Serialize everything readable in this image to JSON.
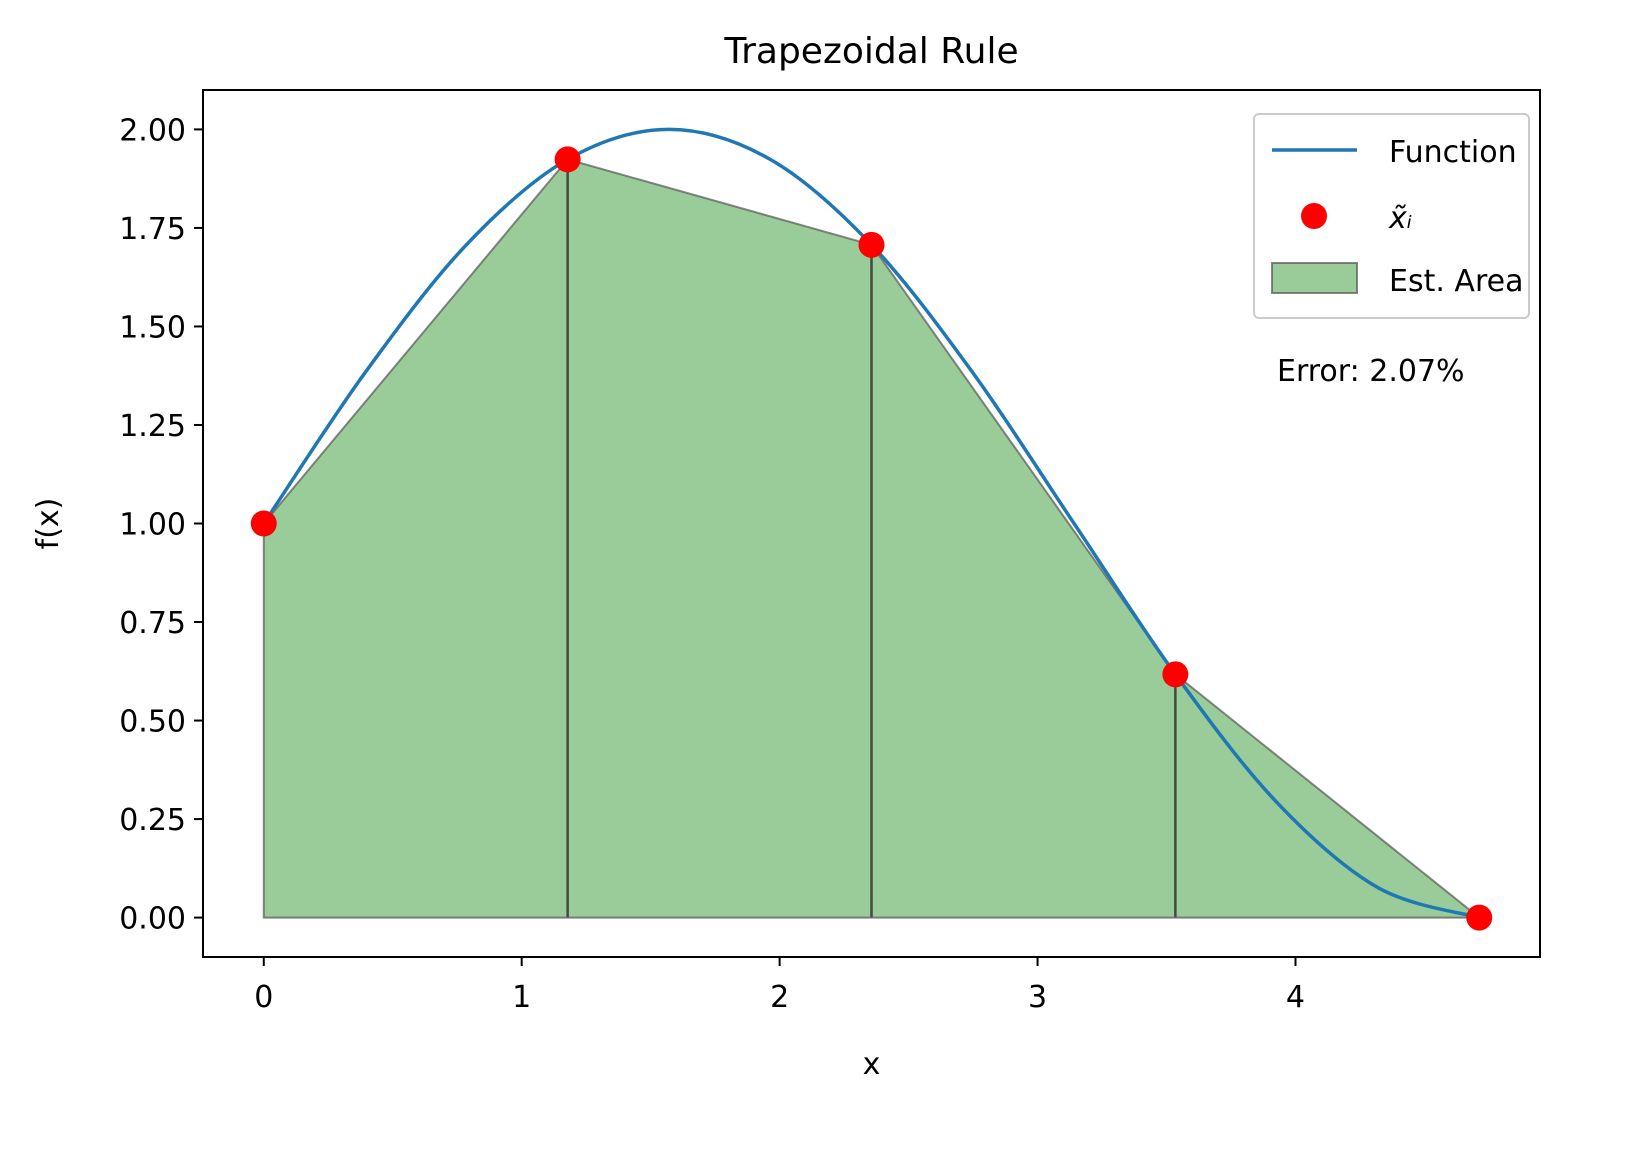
{
  "chart_data": {
    "type": "line",
    "title": "Trapezoidal Rule",
    "xlabel": "x",
    "ylabel": "f(x)",
    "xlim": [
      -0.2356,
      4.948
    ],
    "ylim": [
      -0.1,
      2.1
    ],
    "x_ticks": [
      0,
      1,
      2,
      3,
      4
    ],
    "x_tick_labels": [
      "0",
      "1",
      "2",
      "3",
      "4"
    ],
    "y_ticks": [
      0,
      0.25,
      0.5,
      0.75,
      1.0,
      1.25,
      1.5,
      1.75,
      2.0
    ],
    "y_tick_labels": [
      "0.00",
      "0.25",
      "0.50",
      "0.75",
      "1.00",
      "1.25",
      "1.50",
      "1.75",
      "2.00"
    ],
    "grid": false,
    "legend_position": "top-right",
    "series": [
      {
        "name": "Function",
        "kind": "line",
        "color": "#1f77b4",
        "x": [
          0.0,
          0.3927,
          0.7854,
          1.1781,
          1.5708,
          1.9635,
          2.3562,
          2.7489,
          3.1416,
          3.5343,
          3.927,
          4.3197,
          4.7124
        ],
        "y": [
          1.0,
          1.3827,
          1.7071,
          1.9239,
          2.0,
          1.9239,
          1.7071,
          1.3827,
          1.0,
          0.6173,
          0.2929,
          0.0761,
          0.0
        ]
      },
      {
        "name": "x̃ᵢ",
        "kind": "points",
        "color": "#ff0000",
        "x": [
          0.0,
          1.1781,
          2.3562,
          3.5343,
          4.7124
        ],
        "y": [
          1.0,
          1.9239,
          1.7071,
          0.6173,
          0.0
        ]
      },
      {
        "name": "Est. Area",
        "kind": "trapezoids",
        "color": "#99cc99",
        "edge_color": "#333333",
        "x": [
          0.0,
          1.1781,
          2.3562,
          3.5343,
          4.7124
        ],
        "y": [
          1.0,
          1.9239,
          1.7071,
          0.6173,
          0.0
        ]
      }
    ],
    "annotations": [
      {
        "text": "Error: 2.07%"
      }
    ]
  }
}
